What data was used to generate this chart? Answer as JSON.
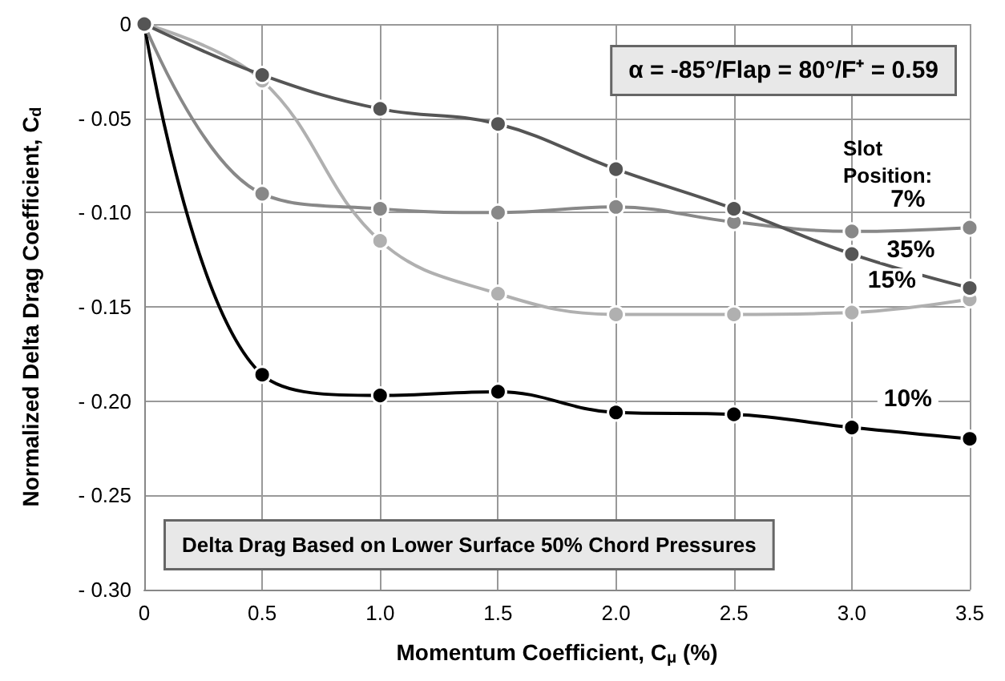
{
  "chart_data": {
    "type": "line",
    "x": [
      0,
      0.5,
      1.0,
      1.5,
      2.0,
      2.5,
      3.0,
      3.5
    ],
    "series": [
      {
        "name": "35%",
        "color": "#555555",
        "values": [
          0,
          -0.027,
          -0.045,
          -0.053,
          -0.077,
          -0.098,
          -0.122,
          -0.14
        ]
      },
      {
        "name": "7%",
        "color": "#888888",
        "values": [
          0,
          -0.09,
          -0.098,
          -0.1,
          -0.097,
          -0.105,
          -0.11,
          -0.108
        ]
      },
      {
        "name": "15%",
        "color": "#b0b0b0",
        "values": [
          0,
          -0.03,
          -0.115,
          -0.143,
          -0.154,
          -0.154,
          -0.153,
          -0.146
        ]
      },
      {
        "name": "10%",
        "color": "#000000",
        "values": [
          0,
          -0.186,
          -0.197,
          -0.195,
          -0.206,
          -0.207,
          -0.214,
          -0.22
        ]
      }
    ],
    "xlabel": "Momentum Coefficient, C$_{μ}$ (%)",
    "ylabel": "Normalized Delta Drag Coefficient, C$_{d}$",
    "annotations": [
      "α = -85°/Flap = 80°/F⁺ = 0.59",
      "Delta Drag Based on Lower Surface 50% Chord Pressures",
      "Slot Position:"
    ],
    "xlim": [
      0,
      3.5
    ],
    "xticks": [
      0,
      {
        "value": 0.5,
        "label": "0.5"
      },
      {
        "value": 1,
        "label": "1.0"
      },
      {
        "value": 1.5,
        "label": "1.5"
      },
      {
        "value": 2,
        "label": "2.0"
      },
      {
        "value": 2.5,
        "label": "2.5"
      },
      {
        "value": 3,
        "label": "3.0"
      },
      {
        "value": 3.5,
        "label": "3.5"
      }
    ],
    "ylim": [
      -0.3,
      0
    ],
    "yticks": [
      {
        "value": -0.3,
        "label": "- 0.30"
      },
      {
        "value": -0.25,
        "label": "- 0.25"
      },
      {
        "value": -0.2,
        "label": "- 0.20"
      },
      {
        "value": -0.15,
        "label": "- 0.15"
      },
      {
        "value": -0.1,
        "label": "- 0.10"
      },
      {
        "value": -0.05,
        "label": "- 0.05"
      },
      0
    ],
    "grid": true,
    "legend": false,
    "marker": "circle",
    "line_style": "solid"
  }
}
